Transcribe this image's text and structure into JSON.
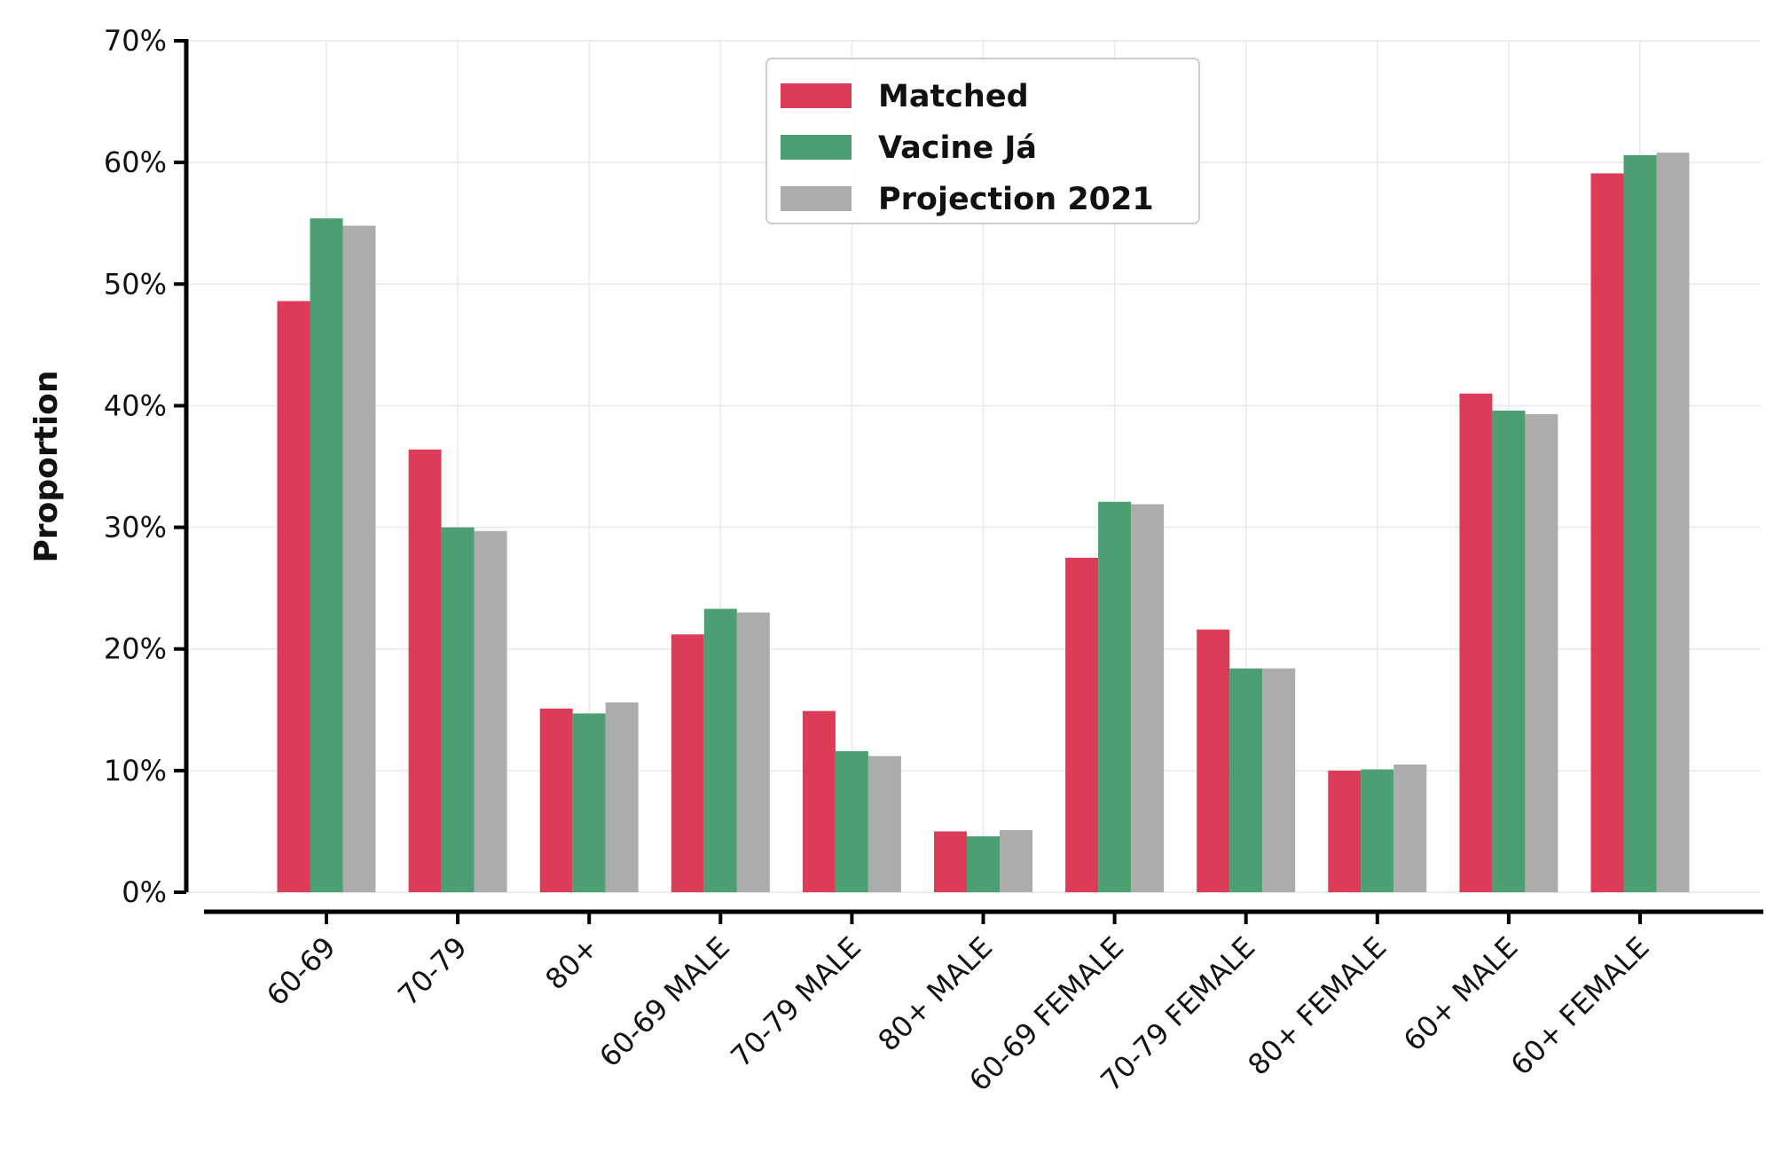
{
  "chart_data": {
    "type": "bar",
    "title": "",
    "xlabel": "",
    "ylabel": "Proportion",
    "ylim": [
      0,
      70
    ],
    "yticks": [
      0,
      10,
      20,
      30,
      40,
      50,
      60,
      70
    ],
    "ytick_labels": [
      "0%",
      "10%",
      "20%",
      "30%",
      "40%",
      "50%",
      "60%",
      "70%"
    ],
    "grid": true,
    "legend_position": "top-center",
    "categories": [
      "60-69",
      "70-79",
      "80+",
      "60-69 MALE",
      "70-79 MALE",
      "80+ MALE",
      "60-69 FEMALE",
      "70-79 FEMALE",
      "80+ FEMALE",
      "60+ MALE",
      "60+ FEMALE"
    ],
    "series": [
      {
        "name": "Matched",
        "color": "#dc3c58",
        "values": [
          48.6,
          36.4,
          15.1,
          21.2,
          14.9,
          5.0,
          27.5,
          21.6,
          10.0,
          41.0,
          59.1
        ]
      },
      {
        "name": "Vacine Já",
        "color": "#4e9e73",
        "values": [
          55.4,
          30.0,
          14.7,
          23.3,
          11.6,
          4.6,
          32.1,
          18.4,
          10.1,
          39.6,
          60.6
        ]
      },
      {
        "name": "Projection 2021",
        "color": "#acacac",
        "values": [
          54.8,
          29.7,
          15.6,
          23.0,
          11.2,
          5.1,
          31.9,
          18.4,
          10.5,
          39.3,
          60.8
        ]
      }
    ]
  }
}
